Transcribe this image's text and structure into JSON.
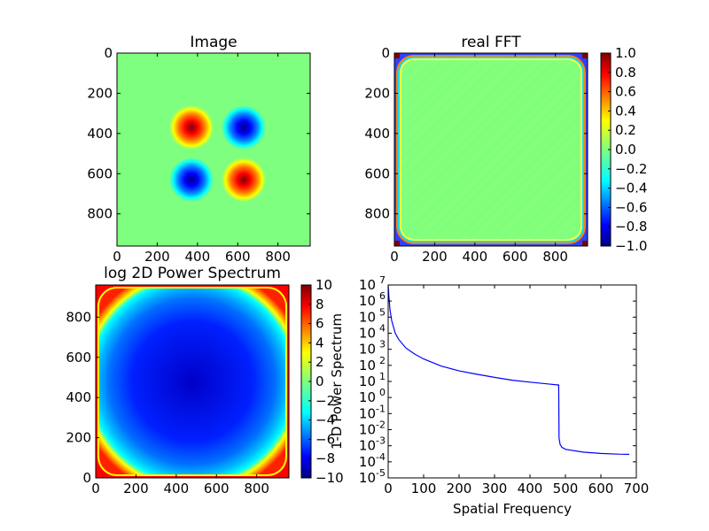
{
  "colors": {
    "jet": [
      "#00007f",
      "#0000ff",
      "#007fff",
      "#00ffff",
      "#7fff7f",
      "#ffff00",
      "#ff7f00",
      "#ff0000",
      "#7f0000"
    ],
    "line": "#0000ff",
    "background": "#ffffff"
  },
  "chart_data": [
    {
      "type": "heatmap",
      "title": "Image",
      "xlabel": "",
      "ylabel": "",
      "xlim": [
        0,
        960
      ],
      "ylim": [
        960,
        0
      ],
      "xticks": [
        0,
        200,
        400,
        600,
        800
      ],
      "yticks": [
        0,
        200,
        400,
        600,
        800
      ],
      "xtick_labels": [
        "0",
        "200",
        "400",
        "600",
        "800"
      ],
      "ytick_labels": [
        "0",
        "200",
        "400",
        "600",
        "800"
      ],
      "blobs": [
        {
          "x": 370,
          "y": 370,
          "value": 1.0
        },
        {
          "x": 630,
          "y": 370,
          "value": -1.0
        },
        {
          "x": 370,
          "y": 630,
          "value": -1.0
        },
        {
          "x": 630,
          "y": 630,
          "value": 1.0
        }
      ],
      "colorbar": null
    },
    {
      "type": "heatmap",
      "title": "real FFT",
      "xlabel": "",
      "ylabel": "",
      "xlim": [
        0,
        960
      ],
      "ylim": [
        960,
        0
      ],
      "xticks": [
        0,
        200,
        400,
        600,
        800
      ],
      "yticks": [
        0,
        200,
        400,
        600,
        800
      ],
      "xtick_labels": [
        "0",
        "200",
        "400",
        "600",
        "800"
      ],
      "ytick_labels": [
        "0",
        "200",
        "400",
        "600",
        "800"
      ],
      "colorbar": {
        "min": -1.0,
        "max": 1.0,
        "ticks": [
          1.0,
          0.8,
          0.6,
          0.4,
          0.2,
          0.0,
          -0.2,
          -0.4,
          -0.6,
          -0.8,
          -1.0
        ],
        "tick_labels": [
          "1.0",
          "0.8",
          "0.6",
          "0.4",
          "0.2",
          "0.0",
          "−0.2",
          "−0.4",
          "−0.6",
          "−0.8",
          "−1.0"
        ]
      }
    },
    {
      "type": "heatmap",
      "title": "log 2D Power Spectrum",
      "xlabel": "",
      "ylabel": "",
      "xlim": [
        0,
        960
      ],
      "ylim": [
        0,
        960
      ],
      "xticks": [
        0,
        200,
        400,
        600,
        800
      ],
      "yticks": [
        0,
        200,
        400,
        600,
        800
      ],
      "xtick_labels": [
        "0",
        "200",
        "400",
        "600",
        "800"
      ],
      "ytick_labels": [
        "0",
        "200",
        "400",
        "600",
        "800"
      ],
      "center_value": -9,
      "edge_value": 10,
      "colorbar": {
        "min": -10,
        "max": 10,
        "ticks": [
          10,
          8,
          6,
          4,
          2,
          0,
          -2,
          -4,
          -6,
          -8,
          -10
        ],
        "tick_labels": [
          "10",
          "8",
          "6",
          "4",
          "2",
          "0",
          "−2",
          "−4",
          "−6",
          "−8",
          "−10"
        ]
      }
    },
    {
      "type": "line",
      "title": "",
      "xlabel": "Spatial Frequency",
      "ylabel": "1-D Power Spectrum",
      "xscale": "linear",
      "yscale": "log",
      "xlim": [
        0,
        700
      ],
      "ylim": [
        1e-05,
        10000000.0
      ],
      "xticks": [
        0,
        100,
        200,
        300,
        400,
        500,
        600,
        700
      ],
      "xtick_labels": [
        "0",
        "100",
        "200",
        "300",
        "400",
        "500",
        "600",
        "700"
      ],
      "ytick_exponents": [
        7,
        6,
        5,
        4,
        3,
        2,
        1,
        0,
        -1,
        -2,
        -3,
        -4,
        -5
      ],
      "ytick_base": "10",
      "series": [
        {
          "x": [
            0,
            2,
            5,
            10,
            20,
            30,
            50,
            75,
            100,
            150,
            200,
            250,
            300,
            350,
            400,
            450,
            479,
            481,
            482,
            485,
            490,
            500,
            550,
            600,
            650,
            680
          ],
          "y": [
            10000000.0,
            2000000.0,
            300000.0,
            60000.0,
            10000.0,
            4000,
            1200,
            500,
            250,
            90,
            45,
            28,
            18,
            12,
            9,
            7,
            6,
            6,
            0.003,
            0.0012,
            0.0008,
            0.0006,
            0.0004,
            0.00033,
            0.0003,
            0.00029
          ]
        }
      ]
    }
  ]
}
